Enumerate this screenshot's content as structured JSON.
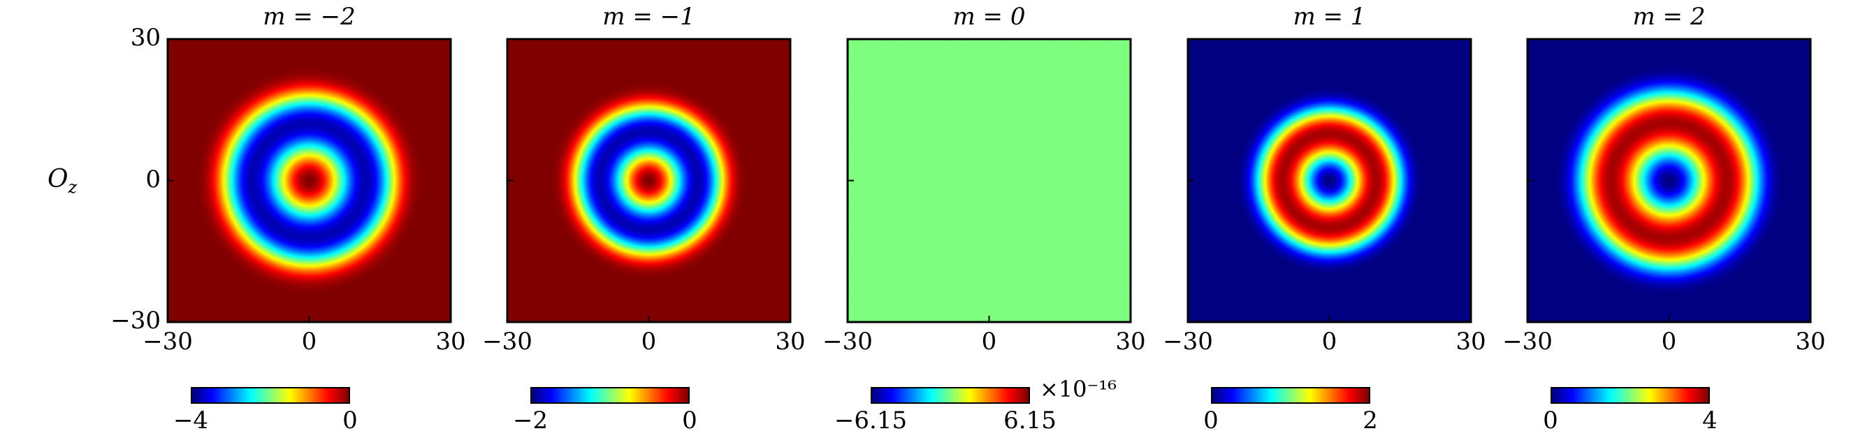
{
  "ylabel": "O_z",
  "chart_data": [
    {
      "type": "heatmap",
      "title": "m = −2",
      "xlim": [
        -30,
        30
      ],
      "ylim": [
        -30,
        30
      ],
      "x_ticks": [
        "−30",
        "0",
        "30"
      ],
      "y_ticks": [
        "30",
        "0",
        "−30"
      ],
      "colorbar": {
        "min": -4,
        "max": 0,
        "ticks": [
          "−4",
          "0"
        ],
        "exponent": ""
      },
      "rings": {
        "center": 0,
        "ring_radius": 15,
        "ring_value": -4,
        "outside_value": 0
      }
    },
    {
      "type": "heatmap",
      "title": "m = −1",
      "xlim": [
        -30,
        30
      ],
      "ylim": [
        -30,
        30
      ],
      "x_ticks": [
        "−30",
        "0",
        "30"
      ],
      "y_ticks": [],
      "colorbar": {
        "min": -2,
        "max": 0,
        "ticks": [
          "−2",
          "0"
        ],
        "exponent": ""
      },
      "rings": {
        "center": 0,
        "ring_radius": 13,
        "ring_value": -2,
        "outside_value": 0
      }
    },
    {
      "type": "heatmap",
      "title": "m = 0",
      "xlim": [
        -30,
        30
      ],
      "ylim": [
        -30,
        30
      ],
      "x_ticks": [
        "−30",
        "0",
        "30"
      ],
      "y_ticks": [],
      "colorbar": {
        "min": -6.15,
        "max": 6.15,
        "ticks": [
          "−6.15",
          "6.15"
        ],
        "exponent": "×10⁻¹⁶"
      },
      "rings": {
        "center": 0,
        "ring_radius": 0,
        "ring_value": 0,
        "outside_value": 0
      }
    },
    {
      "type": "heatmap",
      "title": "m = 1",
      "xlim": [
        -30,
        30
      ],
      "ylim": [
        -30,
        30
      ],
      "x_ticks": [
        "−30",
        "0",
        "30"
      ],
      "y_ticks": [],
      "colorbar": {
        "min": 0,
        "max": 2,
        "ticks": [
          "0",
          "2"
        ],
        "exponent": ""
      },
      "rings": {
        "center": 0,
        "ring_radius": 13,
        "ring_value": 2,
        "outside_value": 0
      }
    },
    {
      "type": "heatmap",
      "title": "m = 2",
      "xlim": [
        -30,
        30
      ],
      "ylim": [
        -30,
        30
      ],
      "x_ticks": [
        "−30",
        "0",
        "30"
      ],
      "y_ticks": [],
      "colorbar": {
        "min": 0,
        "max": 4,
        "ticks": [
          "0",
          "4"
        ],
        "exponent": ""
      },
      "rings": {
        "center": 0,
        "ring_radius": 16,
        "ring_value": 4,
        "outside_value": 0
      }
    }
  ]
}
